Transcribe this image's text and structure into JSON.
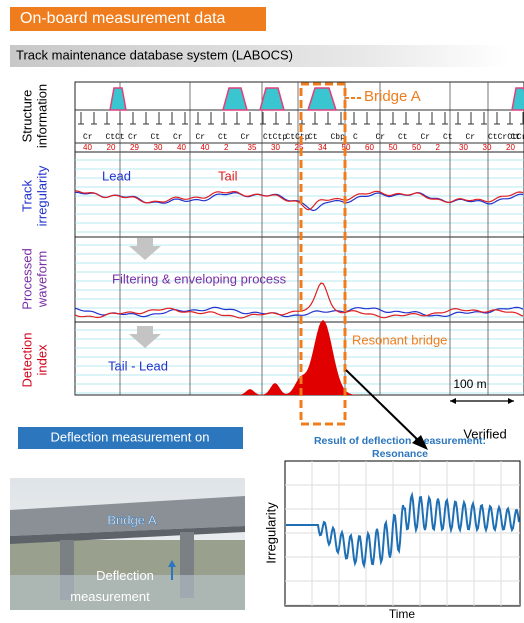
{
  "header": {
    "title": "On-board measurement data",
    "system": "Track maintenance database system (LABOCS)"
  },
  "panel": {
    "rows": [
      {
        "label": [
          "Structure",
          "information"
        ]
      },
      {
        "label": [
          "Track",
          "irregularity"
        ]
      },
      {
        "label": [
          "Processed",
          "waveform"
        ]
      },
      {
        "label": [
          "Detection",
          "index"
        ]
      }
    ],
    "structure_codes": [
      "Cr",
      "CtCt",
      "Cr",
      "Ct",
      "Cr",
      "Cr",
      "Ct",
      "Cr",
      "CtCtp",
      "CtCtp",
      "Ct",
      "Cbp",
      "C",
      "Cr",
      "Ct",
      "Cr",
      "Ct",
      "Cr",
      "CtCrCtCr",
      "Ct"
    ],
    "speeds": [
      "40",
      "20",
      "29",
      "30",
      "40",
      "40",
      "2",
      "35",
      "30",
      "25",
      "34",
      "50",
      "60",
      "50",
      "50",
      "2",
      "30",
      "30",
      "20"
    ],
    "bridge_label": "Bridge A",
    "lead": "Lead",
    "tail": "Tail",
    "process_label": "Filtering & enveloping process",
    "difference_label": "Tail - Lead",
    "resonant_label": "Resonant bridge",
    "scale_label": "100 m",
    "verified": "Verified"
  },
  "deflection": {
    "box": "Deflection measurement on",
    "photo_bridge": "Bridge A",
    "photo_label": [
      "Deflection",
      "measurement"
    ]
  },
  "result": {
    "title": [
      "Result of deflection measurement:",
      "Resonance"
    ],
    "ylabel": "Irregularity",
    "xlabel": "Time"
  }
}
